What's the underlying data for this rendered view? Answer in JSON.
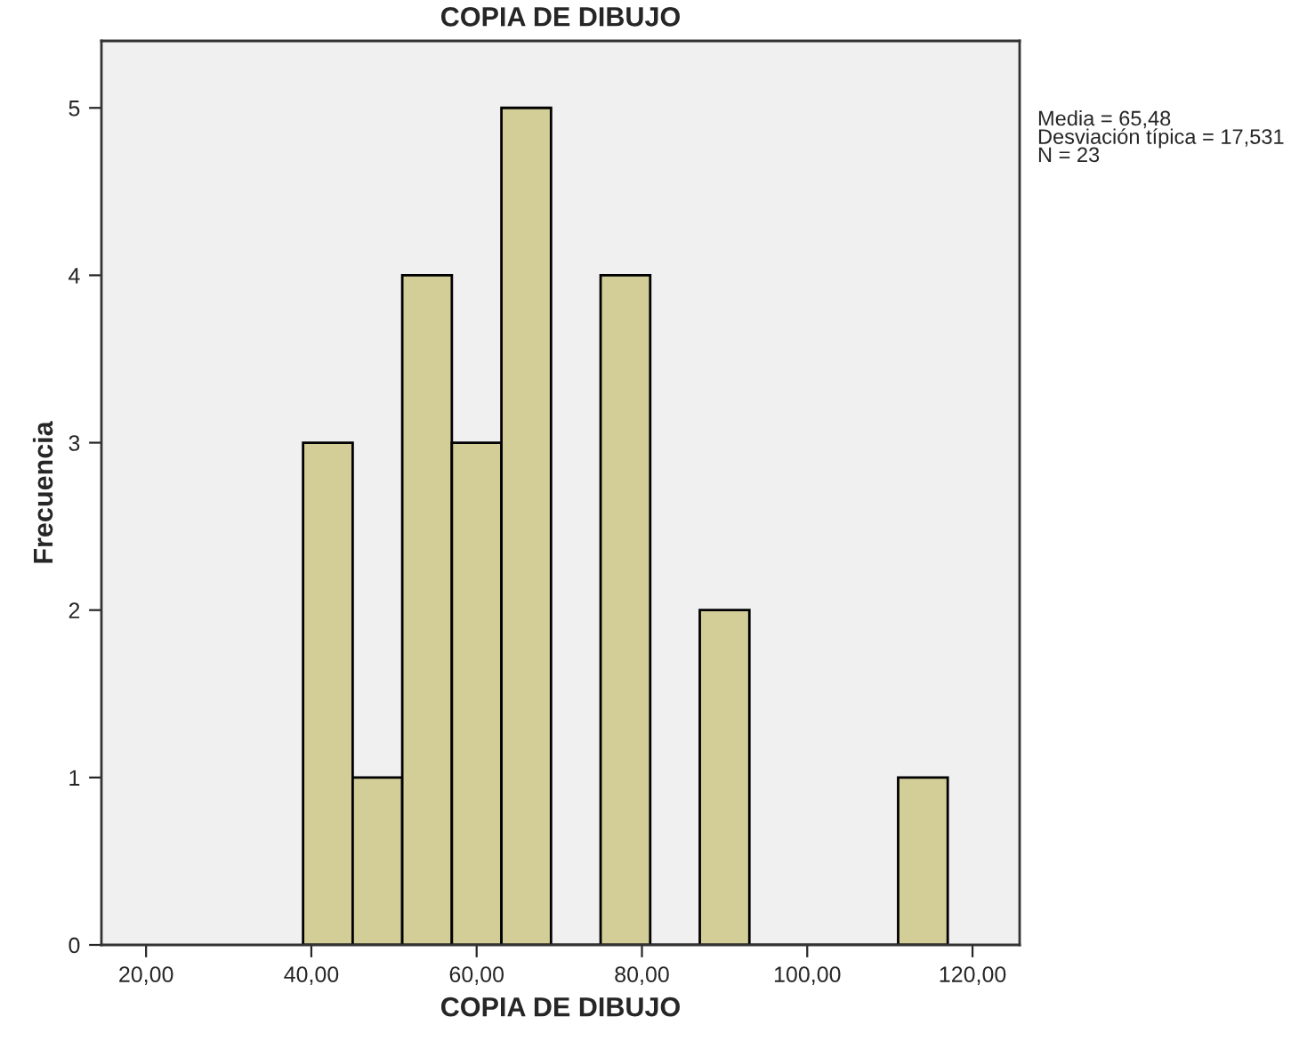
{
  "chart_data": {
    "type": "histogram",
    "title": "COPIA DE DIBUJO",
    "xlabel": "COPIA DE DIBUJO",
    "ylabel": "Frecuencia",
    "bins": [
      39,
      45,
      51,
      57,
      63,
      69,
      75,
      81,
      87,
      93,
      99,
      105,
      111,
      117
    ],
    "values": [
      3,
      1,
      4,
      3,
      5,
      0,
      4,
      0,
      2,
      0,
      0,
      0,
      1
    ],
    "color": "#d3ce97",
    "xlim": [
      14.6,
      125.7
    ],
    "ylim": [
      0,
      5.4
    ],
    "xticks": [
      {
        "value": 20,
        "label": "20,00"
      },
      {
        "value": 40,
        "label": "40,00"
      },
      {
        "value": 60,
        "label": "60,00"
      },
      {
        "value": 80,
        "label": "80,00"
      },
      {
        "value": 100,
        "label": "100,00"
      },
      {
        "value": 120,
        "label": "120,00"
      }
    ],
    "yticks": [
      0,
      1,
      2,
      3,
      4,
      5
    ],
    "grid": false,
    "annotations": [
      "Media = 65,48\nDesviación típica = 17,531\nN = 23"
    ]
  }
}
